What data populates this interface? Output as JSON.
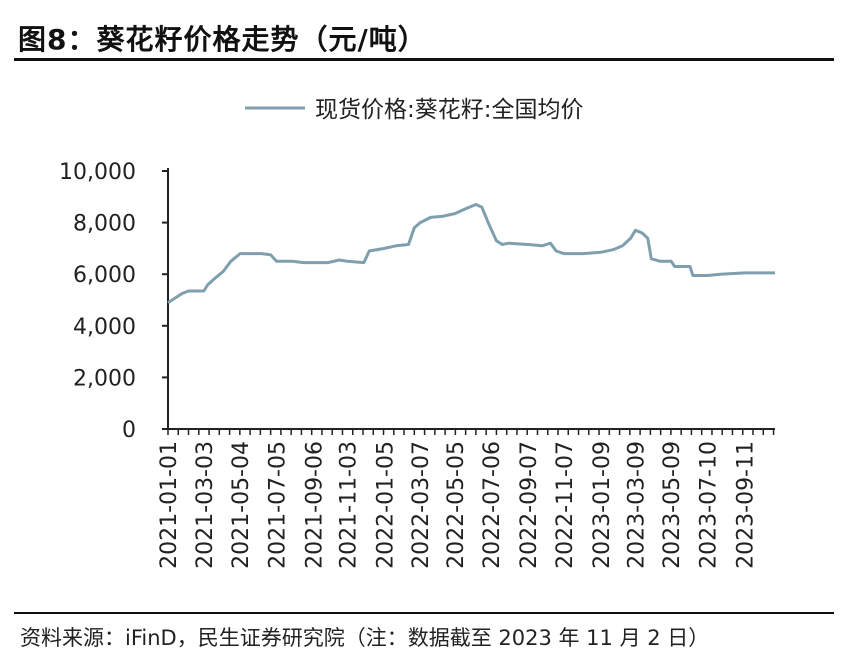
{
  "figure": {
    "title": "图8：葵花籽价格走势（元/吨）",
    "source": "资料来源：iFinD，民生证券研究院（注：数据截至 2023 年 11 月 2 日）"
  },
  "chart_data": {
    "type": "line",
    "legend_position": "top-center",
    "grid": false,
    "line_color": "#7f9fae",
    "ylim": [
      0,
      10000
    ],
    "y_ticks": [
      "10,000",
      "8,000",
      "6,000",
      "4,000",
      "2,000",
      "0"
    ],
    "y_tick_values": [
      10000,
      8000,
      6000,
      4000,
      2000,
      0
    ],
    "x_tick_labels": [
      "2021-01-01",
      "2021-03-03",
      "2021-05-04",
      "2021-07-05",
      "2021-09-06",
      "2021-11-03",
      "2022-01-05",
      "2022-03-07",
      "2022-05-05",
      "2022-07-06",
      "2022-09-07",
      "2022-11-07",
      "2023-01-09",
      "2023-03-09",
      "2023-05-09",
      "2023-07-10",
      "2023-09-11"
    ],
    "xlim": [
      "2021-01-01",
      "2023-11-02"
    ],
    "series": [
      {
        "name": "现货价格:葵花籽:全国均价",
        "points": [
          [
            "2021-01-01",
            4900
          ],
          [
            "2021-01-15",
            5100
          ],
          [
            "2021-01-25",
            5250
          ],
          [
            "2021-02-05",
            5350
          ],
          [
            "2021-03-03",
            5350
          ],
          [
            "2021-03-10",
            5600
          ],
          [
            "2021-03-25",
            5900
          ],
          [
            "2021-04-05",
            6100
          ],
          [
            "2021-04-18",
            6500
          ],
          [
            "2021-05-04",
            6800
          ],
          [
            "2021-06-10",
            6800
          ],
          [
            "2021-06-25",
            6750
          ],
          [
            "2021-07-05",
            6500
          ],
          [
            "2021-08-01",
            6500
          ],
          [
            "2021-08-20",
            6450
          ],
          [
            "2021-09-06",
            6450
          ],
          [
            "2021-10-01",
            6450
          ],
          [
            "2021-10-20",
            6550
          ],
          [
            "2021-11-03",
            6500
          ],
          [
            "2021-12-01",
            6450
          ],
          [
            "2021-12-10",
            6900
          ],
          [
            "2022-01-05",
            7000
          ],
          [
            "2022-01-25",
            7100
          ],
          [
            "2022-02-15",
            7150
          ],
          [
            "2022-02-25",
            7800
          ],
          [
            "2022-03-07",
            8000
          ],
          [
            "2022-03-25",
            8200
          ],
          [
            "2022-04-15",
            8250
          ],
          [
            "2022-05-05",
            8350
          ],
          [
            "2022-05-25",
            8550
          ],
          [
            "2022-06-10",
            8700
          ],
          [
            "2022-06-20",
            8600
          ],
          [
            "2022-07-01",
            8000
          ],
          [
            "2022-07-15",
            7300
          ],
          [
            "2022-07-25",
            7150
          ],
          [
            "2022-08-05",
            7200
          ],
          [
            "2022-09-07",
            7150
          ],
          [
            "2022-10-01",
            7100
          ],
          [
            "2022-10-15",
            7200
          ],
          [
            "2022-10-25",
            6900
          ],
          [
            "2022-11-07",
            6800
          ],
          [
            "2022-12-10",
            6800
          ],
          [
            "2023-01-09",
            6850
          ],
          [
            "2023-01-30",
            6950
          ],
          [
            "2023-02-15",
            7100
          ],
          [
            "2023-03-01",
            7400
          ],
          [
            "2023-03-09",
            7700
          ],
          [
            "2023-03-20",
            7600
          ],
          [
            "2023-03-30",
            7400
          ],
          [
            "2023-04-05",
            6600
          ],
          [
            "2023-04-20",
            6500
          ],
          [
            "2023-05-09",
            6500
          ],
          [
            "2023-05-15",
            6300
          ],
          [
            "2023-06-10",
            6300
          ],
          [
            "2023-06-15",
            5950
          ],
          [
            "2023-07-10",
            5950
          ],
          [
            "2023-08-01",
            6000
          ],
          [
            "2023-09-11",
            6050
          ],
          [
            "2023-10-15",
            6050
          ],
          [
            "2023-11-02",
            6050
          ]
        ]
      }
    ]
  }
}
